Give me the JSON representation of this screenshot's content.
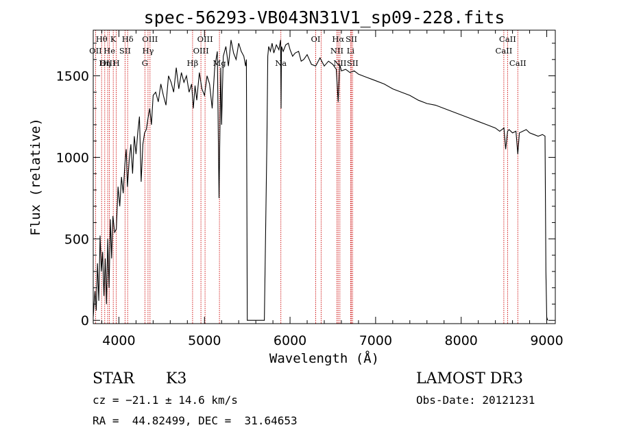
{
  "chart_data": {
    "type": "line",
    "title": "spec-56293-VB043N31V1_sp09-228.fits",
    "xlabel": "Wavelength (Å)",
    "ylabel": "Flux (relative)",
    "xlim": [
      3700,
      9100
    ],
    "ylim": [
      -20,
      1780
    ],
    "x_ticks": [
      4000,
      5000,
      6000,
      7000,
      8000,
      9000
    ],
    "x_tick_labels": [
      "4000",
      "5000",
      "6000",
      "7000",
      "8000",
      "9000"
    ],
    "y_ticks": [
      0,
      500,
      1000,
      1500
    ],
    "y_tick_labels": [
      "0",
      "500",
      "1000",
      "1500"
    ],
    "grid": false,
    "series": [
      {
        "name": "flux",
        "x": [
          3700,
          3720,
          3735,
          3750,
          3765,
          3780,
          3795,
          3810,
          3825,
          3840,
          3855,
          3870,
          3885,
          3900,
          3915,
          3930,
          3950,
          3970,
          3990,
          4010,
          4030,
          4050,
          4070,
          4085,
          4100,
          4120,
          4140,
          4160,
          4180,
          4200,
          4220,
          4240,
          4260,
          4280,
          4300,
          4320,
          4340,
          4360,
          4380,
          4400,
          4430,
          4460,
          4490,
          4520,
          4550,
          4580,
          4610,
          4640,
          4670,
          4700,
          4730,
          4760,
          4790,
          4820,
          4850,
          4870,
          4890,
          4910,
          4940,
          4970,
          5000,
          5030,
          5060,
          5090,
          5120,
          5150,
          5170,
          5190,
          5200,
          5220,
          5250,
          5280,
          5310,
          5340,
          5370,
          5400,
          5430,
          5460,
          5480,
          5490,
          5500,
          5520,
          5600,
          5700,
          5730,
          5740,
          5750,
          5770,
          5790,
          5810,
          5840,
          5870,
          5890,
          5895,
          5900,
          5920,
          5950,
          5980,
          6000,
          6030,
          6060,
          6100,
          6130,
          6160,
          6200,
          6250,
          6300,
          6350,
          6400,
          6450,
          6500,
          6540,
          6563,
          6580,
          6600,
          6650,
          6700,
          6750,
          6800,
          6850,
          6900,
          6950,
          7000,
          7100,
          7200,
          7300,
          7400,
          7500,
          7600,
          7700,
          7800,
          7900,
          8000,
          8100,
          8200,
          8300,
          8400,
          8450,
          8500,
          8520,
          8542,
          8560,
          8600,
          8640,
          8662,
          8680,
          8720,
          8760,
          8800,
          8850,
          8900,
          8950,
          8980,
          8990,
          9000,
          9010
        ],
        "y": [
          20,
          180,
          60,
          350,
          120,
          520,
          300,
          420,
          150,
          380,
          100,
          500,
          200,
          620,
          380,
          640,
          540,
          560,
          820,
          700,
          880,
          780,
          960,
          1050,
          820,
          980,
          1080,
          900,
          1130,
          1020,
          1150,
          1250,
          850,
          1080,
          1150,
          1170,
          1240,
          1300,
          1200,
          1380,
          1400,
          1340,
          1450,
          1380,
          1320,
          1500,
          1460,
          1400,
          1550,
          1420,
          1520,
          1460,
          1500,
          1400,
          1450,
          1300,
          1440,
          1350,
          1520,
          1420,
          1380,
          1500,
          1450,
          1300,
          1550,
          1650,
          750,
          1550,
          1200,
          1620,
          1680,
          1560,
          1720,
          1640,
          1600,
          1700,
          1650,
          1620,
          1560,
          1600,
          0,
          0,
          0,
          0,
          1120,
          1620,
          1680,
          1650,
          1700,
          1640,
          1690,
          1660,
          1720,
          1300,
          1680,
          1650,
          1690,
          1700,
          1660,
          1620,
          1640,
          1650,
          1590,
          1600,
          1630,
          1570,
          1560,
          1610,
          1560,
          1590,
          1570,
          1540,
          1340,
          1570,
          1530,
          1540,
          1520,
          1530,
          1510,
          1500,
          1490,
          1480,
          1470,
          1450,
          1420,
          1400,
          1380,
          1350,
          1330,
          1320,
          1300,
          1280,
          1260,
          1240,
          1220,
          1200,
          1180,
          1160,
          1180,
          1050,
          1160,
          1170,
          1150,
          1160,
          1020,
          1150,
          1160,
          1170,
          1150,
          1140,
          1130,
          1140,
          1130,
          300,
          20,
          0
        ]
      }
    ],
    "line_labels": [
      {
        "label": "Hθ",
        "x": 3798,
        "row": 1
      },
      {
        "label": "K",
        "x": 3934,
        "row": 1
      },
      {
        "label": "Hδ",
        "x": 4102,
        "row": 1
      },
      {
        "label": "OIII",
        "x": 4363,
        "row": 1
      },
      {
        "label": "OIII",
        "x": 5007,
        "row": 1
      },
      {
        "label": "OI",
        "x": 6300,
        "row": 1
      },
      {
        "label": "Hα",
        "x": 6563,
        "row": 1
      },
      {
        "label": "SII",
        "x": 6717,
        "row": 1
      },
      {
        "label": "CaII",
        "x": 8542,
        "row": 1
      },
      {
        "label": "OII",
        "x": 3727,
        "row": 2
      },
      {
        "label": "He",
        "x": 3889,
        "row": 2
      },
      {
        "label": "SII",
        "x": 4072,
        "row": 2
      },
      {
        "label": "Hγ",
        "x": 4340,
        "row": 2
      },
      {
        "label": "OIII",
        "x": 4959,
        "row": 2
      },
      {
        "label": "NII",
        "x": 6548,
        "row": 2
      },
      {
        "label": "Li",
        "x": 6708,
        "row": 2
      },
      {
        "label": "CaII",
        "x": 8498,
        "row": 2
      },
      {
        "label": "OIII",
        "x": 3869,
        "row": 3
      },
      {
        "label": "Hη",
        "x": 3835,
        "row": 3
      },
      {
        "label": "H",
        "x": 3969,
        "row": 3
      },
      {
        "label": "G",
        "x": 4304,
        "row": 3
      },
      {
        "label": "Hβ",
        "x": 4861,
        "row": 3
      },
      {
        "label": "Mg",
        "x": 5175,
        "row": 3
      },
      {
        "label": "Na",
        "x": 5893,
        "row": 3
      },
      {
        "label": "NII",
        "x": 6583,
        "row": 3
      },
      {
        "label": "SII",
        "x": 6731,
        "row": 3
      },
      {
        "label": "CaII",
        "x": 8662,
        "row": 3
      }
    ],
    "line_positions": [
      3727,
      3798,
      3835,
      3869,
      3889,
      3934,
      3969,
      4072,
      4102,
      4304,
      4340,
      4363,
      4861,
      4959,
      5007,
      5175,
      5893,
      6300,
      6363,
      6548,
      6563,
      6583,
      6708,
      6717,
      6731,
      8498,
      8542,
      8662
    ],
    "colors": {
      "spectrum": "#000000",
      "lines": "#cc0000",
      "axes": "#000000"
    }
  },
  "info": {
    "object_type": "STAR",
    "subclass": "K3",
    "survey": "LAMOST DR3",
    "redshift": "cz = −21.1 ± 14.6 km/s",
    "obs_date": "Obs-Date: 20121231",
    "coords": "RA =  44.82499, DEC =  31.64653"
  }
}
